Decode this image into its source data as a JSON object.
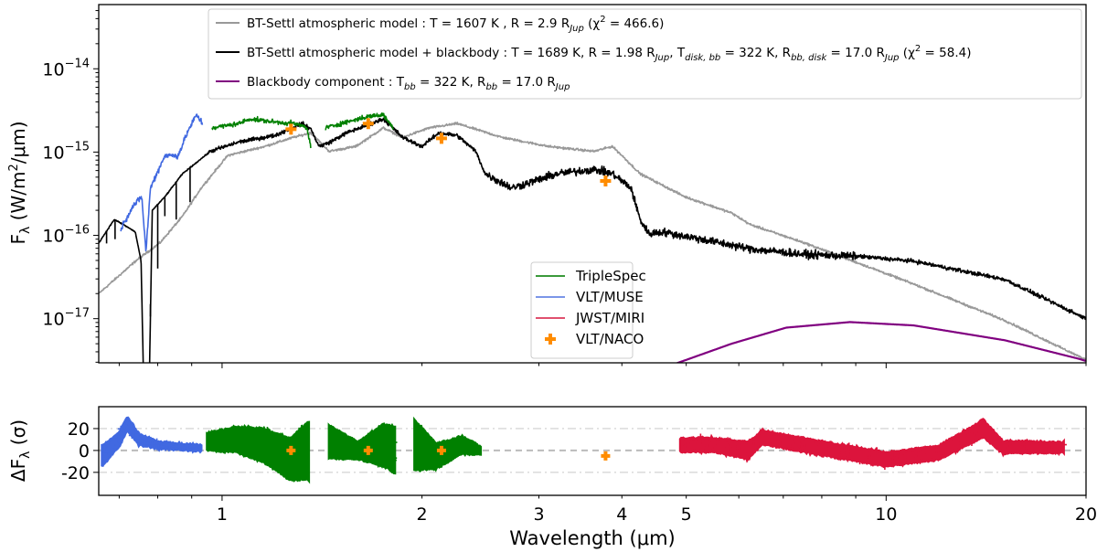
{
  "chart_data": [
    {
      "type": "line",
      "panel": "spectrum",
      "xscale": "log",
      "yscale": "log",
      "xlim": [
        0.652,
        20
      ],
      "ylim": [
        2.95e-18,
        5.9e-14
      ],
      "ylabel": {
        "main": "F",
        "sub": "λ",
        "rest": " (W/m",
        "sup": "2",
        "end": "/μm)"
      },
      "yticks": [
        {
          "value": 1e-14,
          "base": "10",
          "exp": "−14"
        },
        {
          "value": 1e-15,
          "base": "10",
          "exp": "−15"
        },
        {
          "value": 1e-16,
          "base": "10",
          "exp": "−16"
        },
        {
          "value": 1e-17,
          "base": "10",
          "exp": "−17"
        }
      ],
      "legend_main": {
        "placement": "top-right",
        "entries": [
          {
            "color": "#999999",
            "segments": [
              {
                "t": "BT-Settl atmospheric model : T = 1607 K , R = 2.9 R"
              },
              {
                "t": "Jup",
                "sub": true
              },
              {
                "t": " (χ"
              },
              {
                "t": "2",
                "sup": true
              },
              {
                "t": " = 466.6)"
              }
            ]
          },
          {
            "color": "#000000",
            "segments": [
              {
                "t": "BT-Settl atmospheric model + blackbody : T = 1689 K, R = 1.98 R"
              },
              {
                "t": "Jup",
                "sub": true
              },
              {
                "t": ", T"
              },
              {
                "t": "disk, bb",
                "sub": true
              },
              {
                "t": " = 322 K, R"
              },
              {
                "t": "bb, disk",
                "sub": true
              },
              {
                "t": " = 17.0 R"
              },
              {
                "t": "Jup",
                "sub": true
              },
              {
                "t": " (χ"
              },
              {
                "t": "2",
                "sup": true
              },
              {
                "t": " = 58.4)"
              }
            ]
          },
          {
            "color": "#800080",
            "segments": [
              {
                "t": "Blackbody component : T"
              },
              {
                "t": "bb",
                "sub": true
              },
              {
                "t": " = 322 K, R"
              },
              {
                "t": "bb",
                "sub": true
              },
              {
                "t": " = 17.0 R"
              },
              {
                "t": "Jup",
                "sub": true
              }
            ]
          }
        ]
      },
      "legend_data": {
        "placement": "lower-center",
        "entries": [
          {
            "label": "TripleSpec",
            "color": "#3a9a3a",
            "kind": "line"
          },
          {
            "label": "VLT/MUSE",
            "color": "#7b96e8",
            "kind": "line"
          },
          {
            "label": "JWST/MIRI",
            "color": "#e0506e",
            "kind": "line"
          },
          {
            "label": "VLT/NACO",
            "color": "#ff8c00",
            "kind": "plus"
          }
        ]
      },
      "series": [
        {
          "name": "BT-Settl atmospheric model",
          "color": "#999999",
          "segments": [
            [
              [
                0.652,
                2e-17
              ],
              [
                0.745,
                5.1e-17
              ],
              [
                0.806,
                8.1e-17
              ],
              [
                0.872,
                1.7e-16
              ],
              [
                0.93,
                3.7e-16
              ],
              [
                1.02,
                9.1e-16
              ],
              [
                1.16,
                1.17e-15
              ],
              [
                1.28,
                1.5e-15
              ],
              [
                1.36,
                1.7e-15
              ],
              [
                1.45,
                1.02e-15
              ],
              [
                1.59,
                1.17e-15
              ],
              [
                1.75,
                1.95e-15
              ],
              [
                1.87,
                1.5e-15
              ],
              [
                2.05,
                1.95e-15
              ],
              [
                2.26,
                2.2e-15
              ],
              [
                2.64,
                1.5e-15
              ],
              [
                3.1,
                1.17e-15
              ],
              [
                3.63,
                1.02e-15
              ],
              [
                3.87,
                1.17e-15
              ],
              [
                4.0,
                9.1e-16
              ],
              [
                4.26,
                5.5e-16
              ],
              [
                4.98,
                2.9e-16
              ],
              [
                5.85,
                1.86e-16
              ],
              [
                6.24,
                1.35e-16
              ],
              [
                7.54,
                8.1e-17
              ],
              [
                9.71,
                3.8e-17
              ],
              [
                11.0,
                2.6e-17
              ],
              [
                15.1,
                9.5e-18
              ],
              [
                20,
                3.2e-18
              ]
            ]
          ]
        },
        {
          "name": "BT-Settl atmospheric model + blackbody",
          "color": "#000000",
          "segments": [
            [
              [
                0.652,
                8.1e-17
              ],
              [
                0.688,
                1.55e-16
              ],
              [
                0.71,
                1.35e-16
              ],
              [
                0.74,
                1.1e-16
              ],
              [
                0.755,
                5e-17
              ],
              [
                0.763,
                1e-18
              ],
              [
                0.776,
                1e-18
              ],
              [
                0.785,
                2e-16
              ],
              [
                0.82,
                2.9e-16
              ],
              [
                0.872,
                5.5e-16
              ],
              [
                0.96,
                1.02e-15
              ],
              [
                1.06,
                1.32e-15
              ],
              [
                1.2,
                1.58e-15
              ],
              [
                1.32,
                2.2e-15
              ],
              [
                1.36,
                1.9e-15
              ],
              [
                1.4,
                1.17e-15
              ],
              [
                1.45,
                1.3e-15
              ],
              [
                1.54,
                1.7e-15
              ],
              [
                1.75,
                2.5e-15
              ],
              [
                1.87,
                1.5e-15
              ],
              [
                2.0,
                1.17e-15
              ],
              [
                2.12,
                1.7e-15
              ],
              [
                2.26,
                1.58e-15
              ],
              [
                2.41,
                1.02e-15
              ],
              [
                2.49,
                5.5e-16
              ],
              [
                2.73,
                3.7e-16
              ],
              [
                3.2,
                5.5e-16
              ],
              [
                3.63,
                6.2e-16
              ],
              [
                3.87,
                5.5e-16
              ],
              [
                4.13,
                3.7e-16
              ],
              [
                4.26,
                1.55e-16
              ],
              [
                4.39,
                1.05e-16
              ],
              [
                4.6,
                1.1e-16
              ],
              [
                5.15,
                9.3e-17
              ],
              [
                6.24,
                6.9e-17
              ],
              [
                7.54,
                5.9e-17
              ],
              [
                9.1,
                5.6e-17
              ],
              [
                11.0,
                4.9e-17
              ],
              [
                15.1,
                2.95e-17
              ],
              [
                20,
                1e-17
              ]
            ]
          ],
          "absorption_lines": [
            [
              0.67,
              8e-17
            ],
            [
              0.69,
              9e-17
            ],
            [
              0.78,
              1.5e-17
            ],
            [
              0.8,
              4e-17
            ],
            [
              0.82,
              1.7e-16
            ],
            [
              0.853,
              1.55e-16
            ],
            [
              0.895,
              2.5e-16
            ]
          ]
        },
        {
          "name": "VLT/MUSE",
          "color": "#4169e1",
          "segments": [
            [
              [
                0.704,
                1.2e-16
              ],
              [
                0.733,
                2.2e-16
              ],
              [
                0.757,
                2.9e-16
              ],
              [
                0.768,
                6.3e-17
              ],
              [
                0.78,
                3.7e-16
              ],
              [
                0.82,
                9.1e-16
              ],
              [
                0.859,
                9.1e-16
              ],
              [
                0.886,
                1.7e-15
              ],
              [
                0.915,
                2.8e-15
              ],
              [
                0.935,
                2.2e-15
              ]
            ]
          ]
        },
        {
          "name": "TripleSpec",
          "color": "#008000",
          "segments": [
            [
              [
                0.966,
                1.95e-15
              ],
              [
                1.06,
                2.2e-15
              ],
              [
                1.1,
                2.5e-15
              ],
              [
                1.2,
                2.3e-15
              ],
              [
                1.28,
                2.2e-15
              ],
              [
                1.34,
                2e-15
              ],
              [
                1.36,
                1.17e-15
              ]
            ],
            [
              [
                1.43,
                1.95e-15
              ],
              [
                1.54,
                2.3e-15
              ],
              [
                1.67,
                2.7e-15
              ],
              [
                1.75,
                2.8e-15
              ],
              [
                1.81,
                1.95e-15
              ]
            ],
            [
              [
                1.93,
                1.8e-15
              ],
              [
                2.09,
                1.58e-15
              ],
              [
                2.26,
                1.58e-15
              ],
              [
                2.41,
                1.23e-15
              ],
              [
                2.45,
                5e-16
              ],
              [
                2.455,
                1.4e-16
              ]
            ]
          ]
        },
        {
          "name": "JWST/MIRI",
          "color": "#dc143c",
          "segments": [
            [
              [
                4.91,
                2.1e-16
              ],
              [
                5.85,
                1.55e-16
              ],
              [
                7.54,
                8.9e-17
              ],
              [
                9.71,
                5.6e-17
              ],
              [
                12.9,
                3.1e-17
              ],
              [
                17.7,
                1.6e-17
              ],
              [
                18.5,
                1.5e-17
              ]
            ]
          ]
        },
        {
          "name": "Blackbody component",
          "color": "#800080",
          "segments": [
            [
              [
                4.6,
                2e-18
              ],
              [
                4.83,
                2.9e-18
              ],
              [
                5.85,
                5e-18
              ],
              [
                7.07,
                7.8e-18
              ],
              [
                8.82,
                9.1e-18
              ],
              [
                11.0,
                8.3e-18
              ],
              [
                15.1,
                5.5e-18
              ],
              [
                19.5,
                3.3e-18
              ],
              [
                20,
                3.1e-18
              ]
            ]
          ]
        }
      ],
      "photometry": {
        "name": "VLT/NACO",
        "color": "#ff8c00",
        "points": [
          [
            1.27,
            1.88e-15
          ],
          [
            1.66,
            2.2e-15
          ],
          [
            2.14,
            1.46e-15
          ],
          [
            3.78,
            4.5e-16
          ]
        ]
      }
    },
    {
      "type": "scatter",
      "panel": "residuals",
      "xscale": "log",
      "xlim": [
        0.652,
        20
      ],
      "ylim": [
        -41,
        40
      ],
      "xlabel": "Wavelength (μm)",
      "ylabel": {
        "main": "ΔF",
        "sub": "λ",
        "rest": " (σ)"
      },
      "yticks": [
        {
          "value": 20,
          "label": "20"
        },
        {
          "value": 0,
          "label": "0"
        },
        {
          "value": -20,
          "label": "-20"
        }
      ],
      "xticks": [
        {
          "value": 1,
          "label": "1"
        },
        {
          "value": 2,
          "label": "2"
        },
        {
          "value": 3,
          "label": "3"
        },
        {
          "value": 4,
          "label": "4"
        },
        {
          "value": 5,
          "label": "5"
        },
        {
          "value": 10,
          "label": "10"
        },
        {
          "value": 20,
          "label": "20"
        }
      ],
      "reference_lines": [
        0,
        20,
        -20
      ],
      "series": [
        {
          "name": "VLT/MUSE",
          "color": "#4169e1",
          "segments": [
            [
              [
                0.66,
                -5,
                12
              ],
              [
                0.7,
                10,
                8
              ],
              [
                0.72,
                25,
                8
              ],
              [
                0.75,
                10,
                6
              ],
              [
                0.8,
                5,
                4
              ],
              [
                0.93,
                2,
                3
              ]
            ]
          ]
        },
        {
          "name": "TripleSpec",
          "color": "#008000",
          "segments": [
            [
              [
                0.95,
                8,
                10
              ],
              [
                1.05,
                10,
                15
              ],
              [
                1.15,
                5,
                20
              ],
              [
                1.27,
                -8,
                25
              ],
              [
                1.35,
                0,
                35
              ]
            ],
            [
              [
                1.45,
                8,
                20
              ],
              [
                1.6,
                0,
                10
              ],
              [
                1.75,
                5,
                25
              ],
              [
                1.82,
                0,
                28
              ]
            ],
            [
              [
                1.95,
                5,
                30
              ],
              [
                2.1,
                -5,
                15
              ],
              [
                2.3,
                5,
                10
              ],
              [
                2.45,
                0,
                5
              ]
            ]
          ]
        },
        {
          "name": "JWST/MIRI",
          "color": "#dc143c",
          "segments": [
            [
              [
                4.9,
                5,
                8
              ],
              [
                5.5,
                5,
                8
              ],
              [
                6.2,
                0,
                10
              ],
              [
                6.5,
                12,
                8
              ],
              [
                8,
                2,
                8
              ],
              [
                10,
                -8,
                8
              ],
              [
                12,
                -2,
                8
              ],
              [
                14,
                20,
                10
              ],
              [
                15,
                3,
                7
              ],
              [
                18.5,
                3,
                6
              ]
            ]
          ]
        }
      ],
      "photometry": {
        "name": "VLT/NACO",
        "color": "#ff8c00",
        "points": [
          [
            1.27,
            0
          ],
          [
            1.66,
            0
          ],
          [
            2.14,
            0
          ],
          [
            3.78,
            -5
          ]
        ]
      }
    }
  ]
}
